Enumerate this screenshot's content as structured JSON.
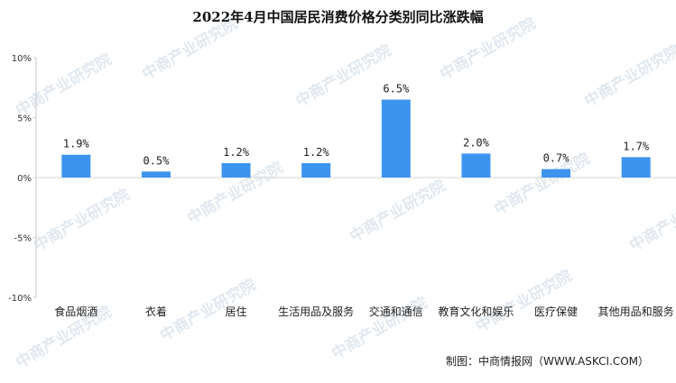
{
  "chart_data": {
    "type": "bar",
    "title": "2022年4月中国居民消费价格分类别同比涨跌幅",
    "categories": [
      "食品烟酒",
      "衣着",
      "居住",
      "生活用品及服务",
      "交通和通信",
      "教育文化和娱乐",
      "医疗保健",
      "其他用品和服务"
    ],
    "values": [
      1.9,
      0.5,
      1.2,
      1.2,
      6.5,
      2.0,
      0.7,
      1.7
    ],
    "data_labels": [
      "1.9%",
      "0.5%",
      "1.2%",
      "1.2%",
      "6.5%",
      "2.0%",
      "0.7%",
      "1.7%"
    ],
    "yticks": [
      10,
      5,
      0,
      -5,
      -10
    ],
    "ytick_labels": [
      "10%",
      "5%",
      "0%",
      "-5%",
      "-10%"
    ],
    "ylim": [
      -10,
      10
    ],
    "grid": false,
    "bar_color": "#3d94ee"
  },
  "source": "制图：中商情报网（WWW.ASKCI.COM）",
  "watermark": "中商产业研究院"
}
